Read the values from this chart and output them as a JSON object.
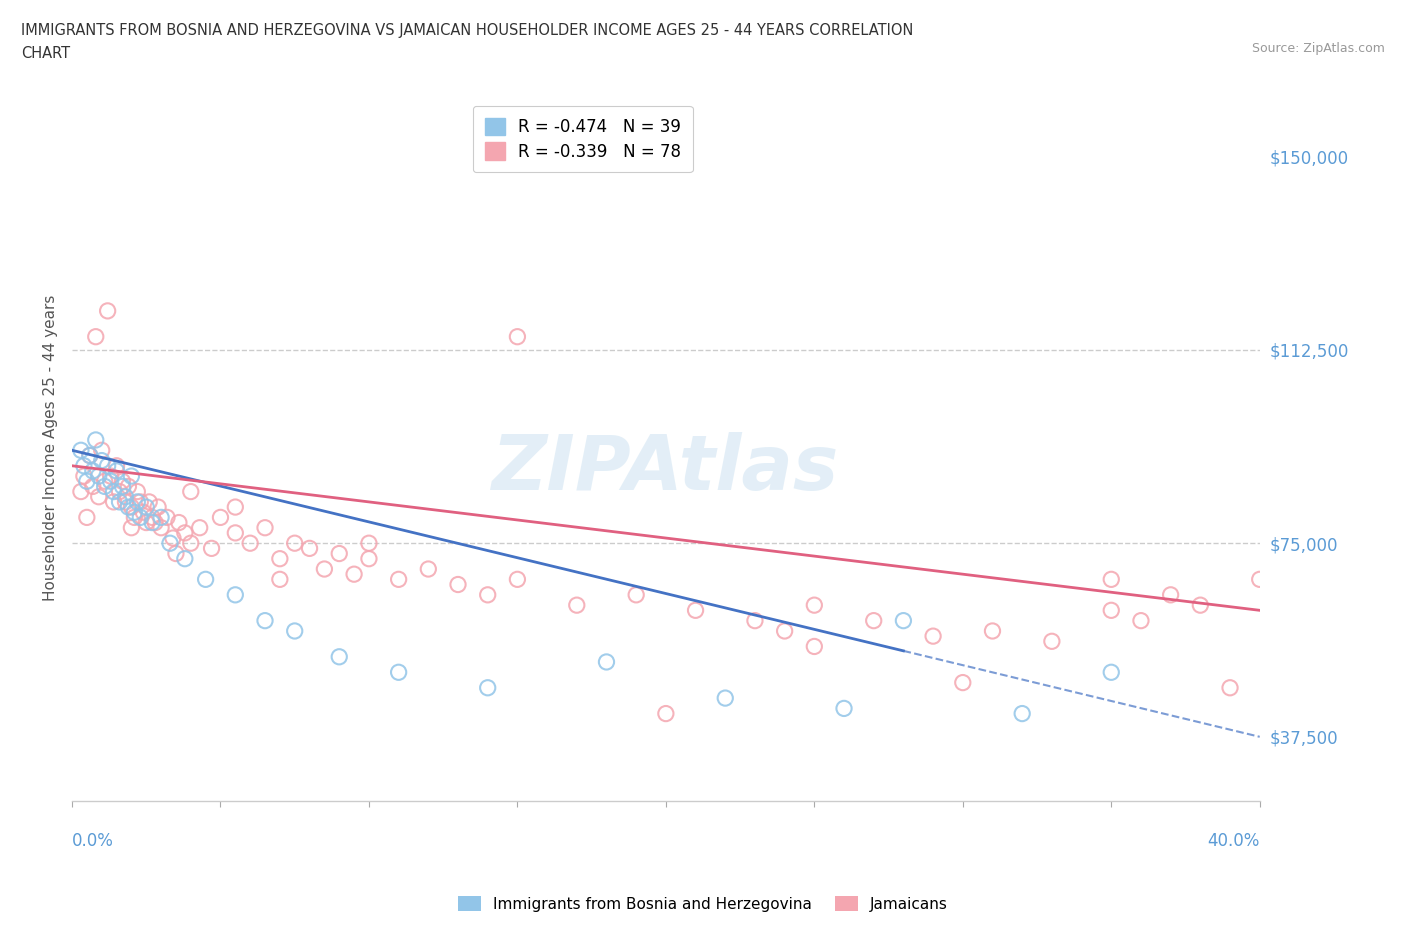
{
  "title_line1": "IMMIGRANTS FROM BOSNIA AND HERZEGOVINA VS JAMAICAN HOUSEHOLDER INCOME AGES 25 - 44 YEARS CORRELATION",
  "title_line2": "CHART",
  "source": "Source: ZipAtlas.com",
  "ylabel": "Householder Income Ages 25 - 44 years",
  "yticks": [
    37500,
    75000,
    112500,
    150000
  ],
  "ytick_labels": [
    "$37,500",
    "$75,000",
    "$112,500",
    "$150,000"
  ],
  "xmin": 0.0,
  "xmax": 40.0,
  "ymin": 25000,
  "ymax": 162000,
  "legend_bosnia_R": "R = -0.474",
  "legend_bosnia_N": "N = 39",
  "legend_jamaican_R": "R = -0.339",
  "legend_jamaican_N": "N = 78",
  "color_bosnia": "#92C5E8",
  "color_jamaican": "#F4A6B0",
  "color_ytick": "#5B9BD5",
  "color_xtick": "#5B9BD5",
  "watermark_color": "#C8DFF0",
  "grid_color": "#CCCCCC",
  "bosnia_x": [
    0.3,
    0.4,
    0.5,
    0.6,
    0.7,
    0.8,
    0.9,
    1.0,
    1.1,
    1.2,
    1.3,
    1.4,
    1.5,
    1.6,
    1.7,
    1.8,
    1.9,
    2.0,
    2.1,
    2.2,
    2.3,
    2.5,
    2.7,
    3.0,
    3.3,
    3.8,
    4.5,
    5.5,
    6.5,
    7.5,
    9.0,
    11.0,
    14.0,
    18.0,
    22.0,
    26.0,
    28.0,
    32.0,
    35.0
  ],
  "bosnia_y": [
    93000,
    90000,
    87000,
    92000,
    89000,
    95000,
    88000,
    91000,
    86000,
    90000,
    87000,
    85000,
    89000,
    83000,
    86000,
    84000,
    82000,
    88000,
    81000,
    83000,
    80000,
    82000,
    79000,
    80000,
    75000,
    72000,
    68000,
    65000,
    60000,
    58000,
    53000,
    50000,
    47000,
    52000,
    45000,
    43000,
    60000,
    42000,
    50000
  ],
  "jamaican_x": [
    0.3,
    0.4,
    0.5,
    0.6,
    0.7,
    0.8,
    0.9,
    1.0,
    1.1,
    1.2,
    1.3,
    1.4,
    1.5,
    1.6,
    1.7,
    1.8,
    1.9,
    2.0,
    2.1,
    2.2,
    2.3,
    2.4,
    2.5,
    2.6,
    2.7,
    2.8,
    2.9,
    3.0,
    3.2,
    3.4,
    3.6,
    3.8,
    4.0,
    4.3,
    4.7,
    5.0,
    5.5,
    6.0,
    6.5,
    7.0,
    7.5,
    8.0,
    8.5,
    9.0,
    9.5,
    10.0,
    11.0,
    12.0,
    13.0,
    14.0,
    15.0,
    17.0,
    19.0,
    21.0,
    23.0,
    24.0,
    25.0,
    27.0,
    29.0,
    31.0,
    33.0,
    35.0,
    36.0,
    37.0,
    38.0,
    39.0,
    40.0,
    3.5,
    5.5,
    7.0,
    10.0,
    15.0,
    20.0,
    25.0,
    30.0,
    35.0,
    2.0,
    4.0
  ],
  "jamaican_y": [
    85000,
    88000,
    80000,
    92000,
    86000,
    115000,
    84000,
    93000,
    87000,
    120000,
    88000,
    83000,
    90000,
    85000,
    87000,
    83000,
    86000,
    82000,
    80000,
    85000,
    83000,
    81000,
    79000,
    83000,
    80000,
    79000,
    82000,
    78000,
    80000,
    76000,
    79000,
    77000,
    75000,
    78000,
    74000,
    80000,
    77000,
    75000,
    78000,
    72000,
    75000,
    74000,
    70000,
    73000,
    69000,
    72000,
    68000,
    70000,
    67000,
    65000,
    68000,
    63000,
    65000,
    62000,
    60000,
    58000,
    63000,
    60000,
    57000,
    58000,
    56000,
    62000,
    60000,
    65000,
    63000,
    47000,
    68000,
    73000,
    82000,
    68000,
    75000,
    115000,
    42000,
    55000,
    48000,
    68000,
    78000,
    85000
  ]
}
